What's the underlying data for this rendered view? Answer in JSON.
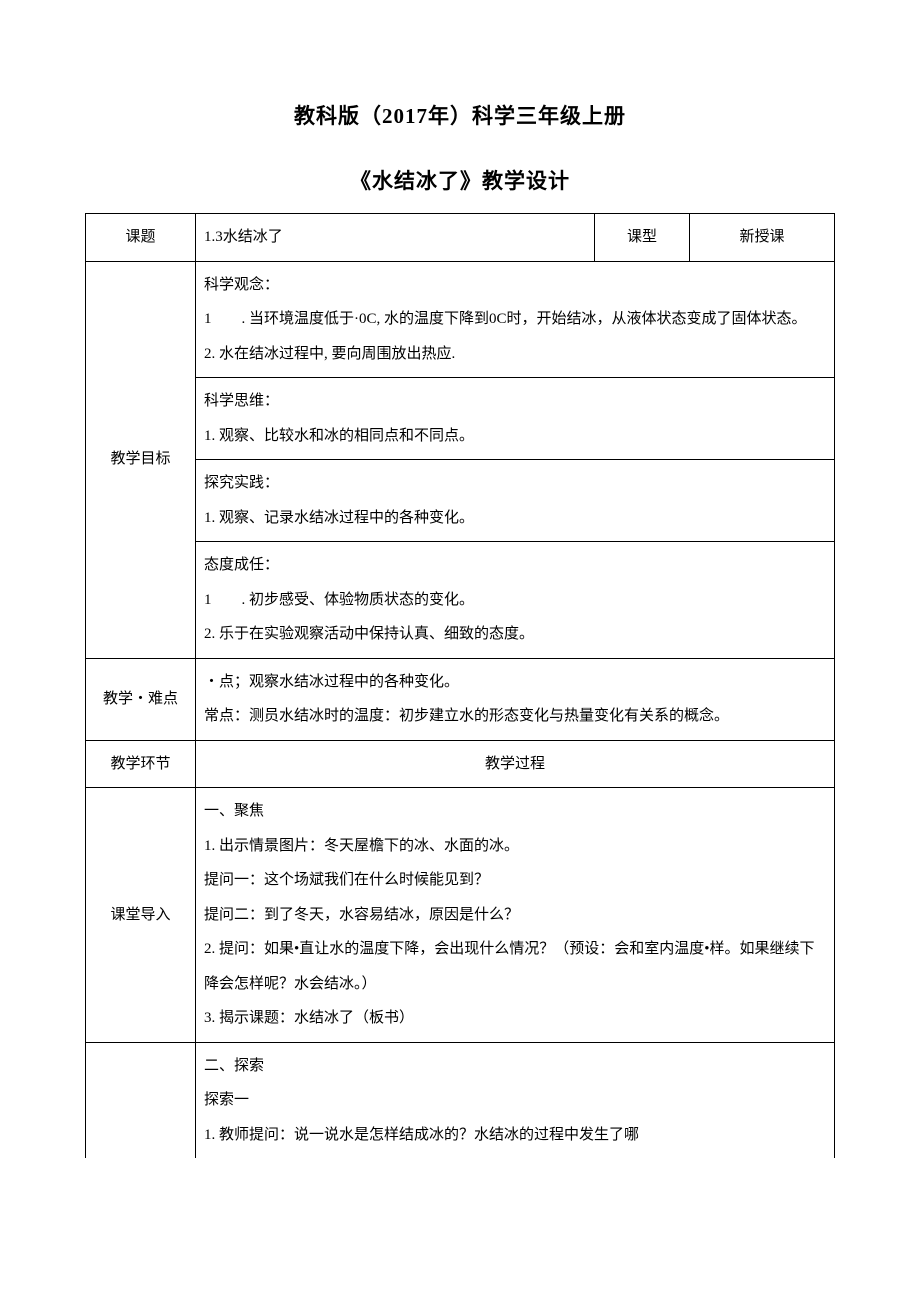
{
  "header": {
    "main_title": "教科版（2017年）科学三年级上册",
    "sub_title": "《水结冰了》教学设计"
  },
  "table": {
    "row_topic": {
      "label": "课题",
      "value": "1.3水结冰了",
      "type_label": "课型",
      "type_value": "新授课"
    },
    "row_goals": {
      "label": "教学目标",
      "sections": [
        {
          "heading": "科学观念：",
          "lines": [
            "1　　. 当环境温度低于·0C, 水的温度下降到0C时，开始结冰，从液体状态变成了固体状态。",
            "2. 水在结冰过程中, 要向周围放出热应."
          ]
        },
        {
          "heading": "科学思维：",
          "lines": [
            "1. 观察、比较水和冰的相同点和不同点。"
          ]
        },
        {
          "heading": "探究实践：",
          "lines": [
            "1. 观察、记录水结冰过程中的各种变化。"
          ]
        },
        {
          "heading": "态度成任：",
          "lines": [
            "1　　. 初步感受、体验物质状态的变化。",
            "2. 乐于在实验观察活动中保持认真、细致的态度。"
          ]
        }
      ]
    },
    "row_keypoints": {
      "label": "教学・难点",
      "lines": [
        "・点；观察水结冰过程中的各种变化。",
        "常点：测员水结冰时的温度：初步建立水的形态变化与热量变化有关系的概念。"
      ]
    },
    "row_process_header": {
      "col1": "教学环节",
      "col2": "教学过程"
    },
    "row_intro": {
      "label": "课堂导入",
      "lines": [
        "一、聚焦",
        "1. 出示情景图片：冬天屋檐下的冰、水面的冰。",
        "提问一：这个场斌我们在什么时候能见到？",
        "提问二：到了冬天，水容易结冰，原因是什么？",
        "2. 提问：如果•直让水的温度下降，会出现什么情况？（预设：会和室内温度•样。如果继续下降会怎样呢？水会结冰。）",
        "3. 揭示课题：水结冰了（板书）"
      ]
    },
    "row_explore": {
      "lines": [
        "二、探索",
        "探索一",
        "1. 教师提问：说一说水是怎样结成冰的？水结冰的过程中发生了哪"
      ]
    }
  },
  "style": {
    "page_bg": "#ffffff",
    "border_color": "#000000",
    "title_fontsize": 21,
    "body_fontsize": 15,
    "line_height": 2.3,
    "col_label_width": 110,
    "col_type_label_width": 95,
    "col_type_value_width": 145
  }
}
